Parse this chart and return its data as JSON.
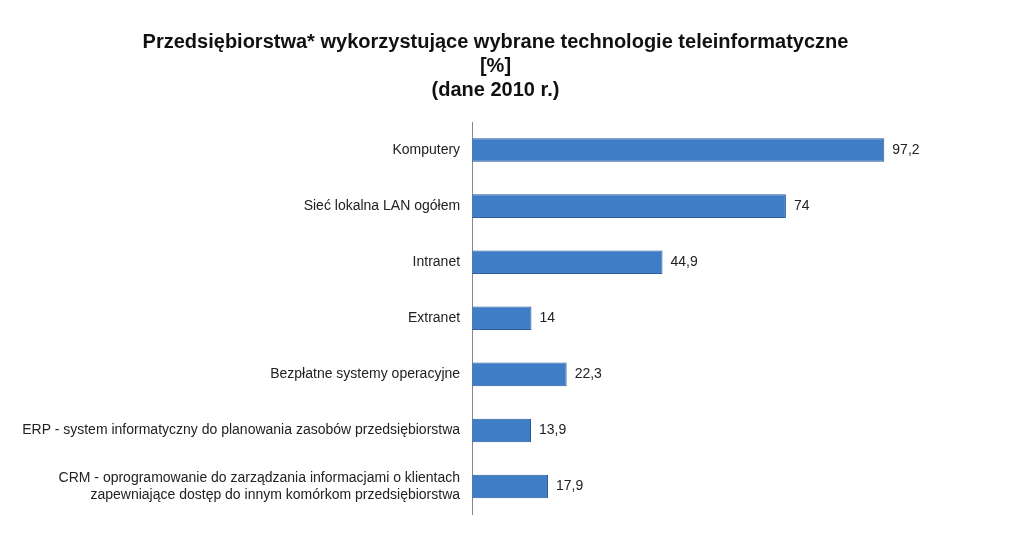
{
  "chart_data": {
    "type": "bar",
    "orientation": "horizontal",
    "title": "Przedsiębiorstwa* wykorzystujące wybrane technologie teleinformatyczne\n[%]\n(dane 2010 r.)",
    "categories": [
      "Komputery",
      "Sieć lokalna LAN ogółem",
      "Intranet",
      "Extranet",
      "Bezpłatne systemy operacyjne",
      "ERP - system informatyczny do planowania zasobów przedsiębiorstwa",
      "CRM - oprogramowanie do zarządzania informacjami o klientach\nzapewniające dostęp do innym komórkom przedsiębiorstwa"
    ],
    "values": [
      97.2,
      74,
      44.9,
      14,
      22.3,
      13.9,
      17.9
    ],
    "value_labels": [
      "97,2",
      "74",
      "44,9",
      "14",
      "22,3",
      "13,9",
      "17,9"
    ],
    "color": "#3f7dc6",
    "grid": false,
    "legend": false
  }
}
